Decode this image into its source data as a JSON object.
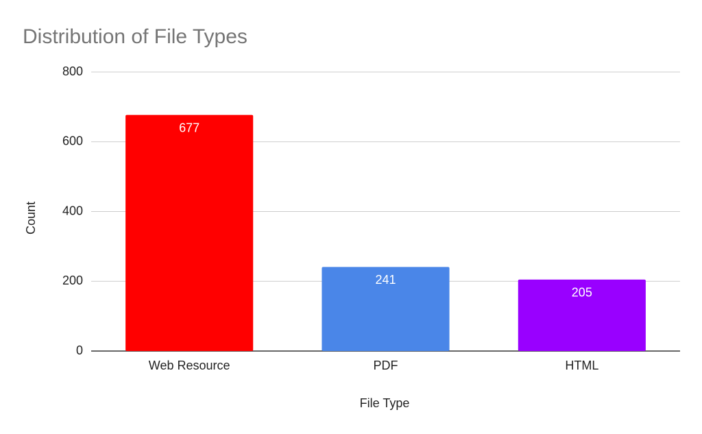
{
  "chart_data": {
    "type": "bar",
    "title": "Distribution of File Types",
    "x_label": "File Type",
    "y_label": "Count",
    "categories": [
      "Web Resource",
      "PDF",
      "HTML"
    ],
    "values": [
      677,
      241,
      205
    ],
    "colors": [
      "#ff0000",
      "#4a86e8",
      "#9900ff"
    ],
    "ylim": [
      0,
      800
    ],
    "yticks": [
      0,
      200,
      400,
      600,
      800
    ],
    "grid": true
  }
}
